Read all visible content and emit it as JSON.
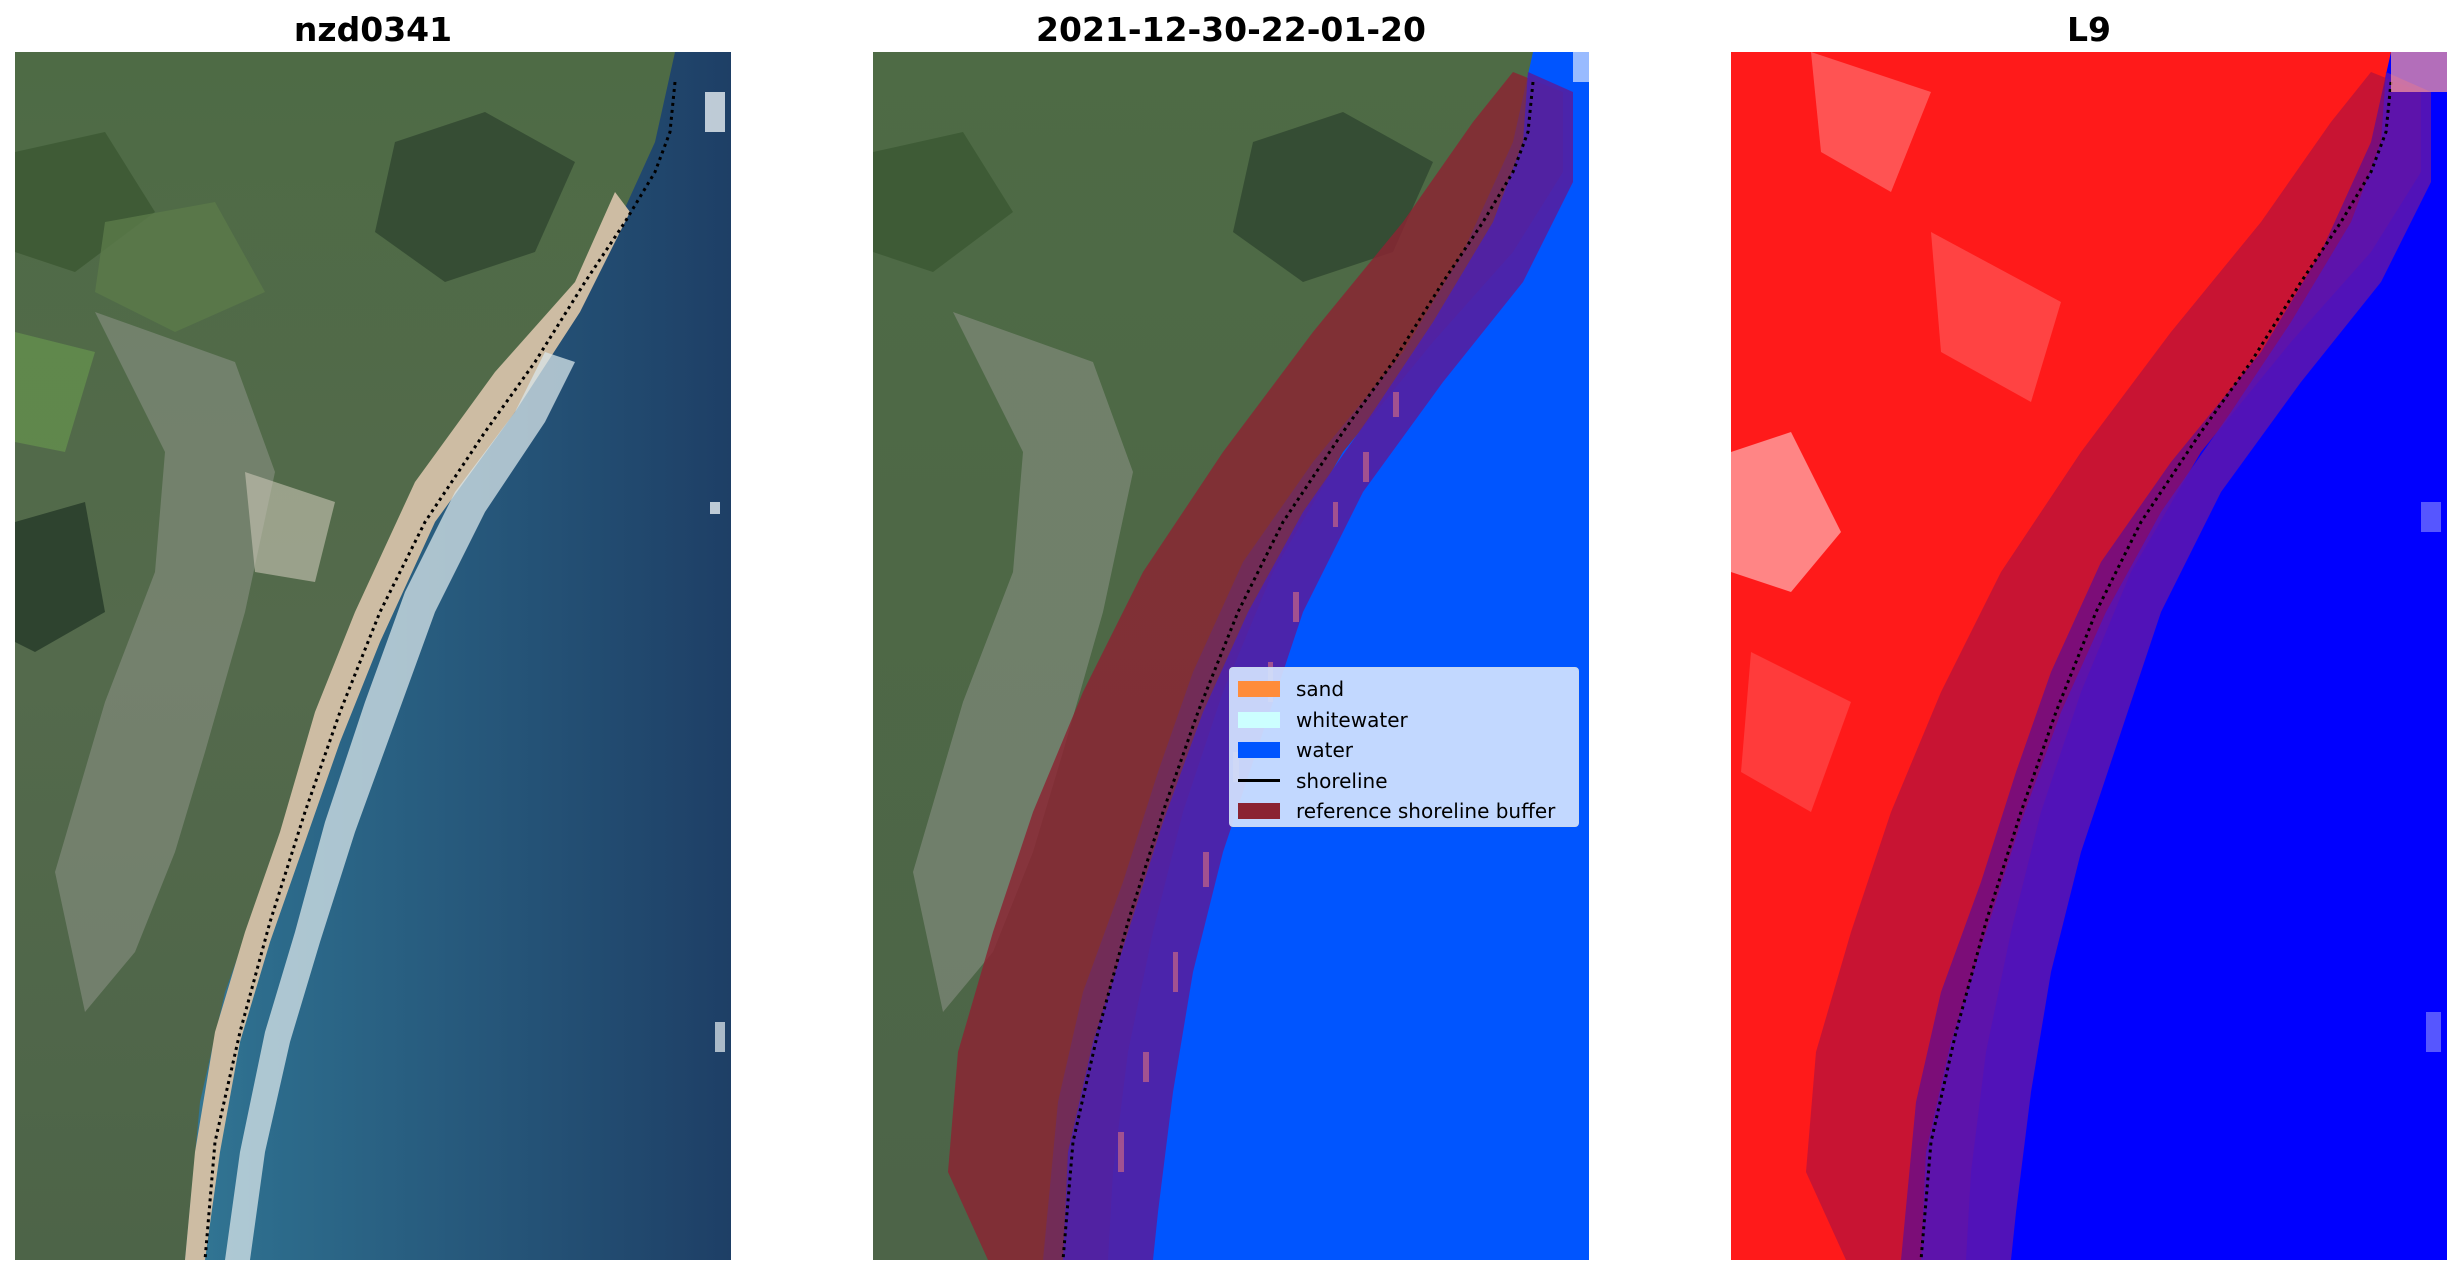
{
  "panels": [
    {
      "title": "nzd0341"
    },
    {
      "title": "2021-12-30-22-01-20"
    },
    {
      "title": "L9"
    }
  ],
  "legend": {
    "items": [
      {
        "label": "sand",
        "color": "#ff8c3a",
        "kind": "patch"
      },
      {
        "label": "whitewater",
        "color": "#ccffff",
        "kind": "patch"
      },
      {
        "label": "water",
        "color": "#0055ff",
        "kind": "patch"
      },
      {
        "label": "shoreline",
        "color": "#000000",
        "kind": "line"
      },
      {
        "label": "reference shoreline buffer",
        "color": "#8b2332",
        "kind": "patch"
      }
    ]
  }
}
